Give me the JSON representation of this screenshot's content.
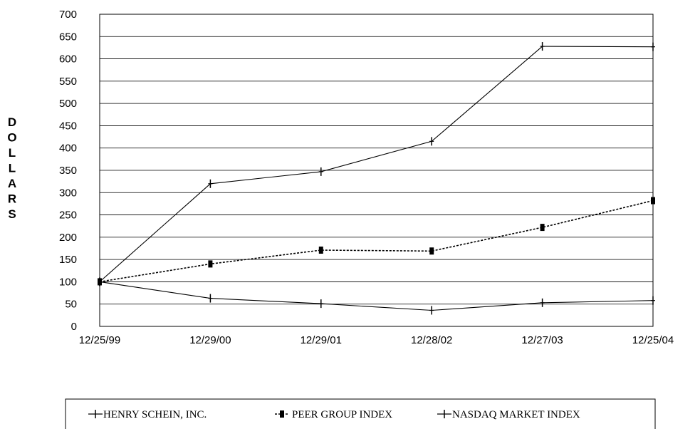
{
  "chart_data": {
    "type": "line",
    "title": "",
    "xlabel": "",
    "ylabel": "DOLLARS",
    "categories": [
      "12/25/99",
      "12/29/00",
      "12/29/01",
      "12/28/02",
      "12/27/03",
      "12/25/04"
    ],
    "ylim": [
      0,
      700
    ],
    "yticks": [
      0,
      50,
      100,
      150,
      200,
      250,
      300,
      350,
      400,
      450,
      500,
      550,
      600,
      650,
      700
    ],
    "grid": true,
    "legend_position": "bottom",
    "series": [
      {
        "name": "HENRY SCHEIN, INC.",
        "values": [
          100,
          320,
          347,
          415,
          628,
          627
        ],
        "style": "solid",
        "marker": "plus"
      },
      {
        "name": "PEER GROUP INDEX",
        "values": [
          100,
          140,
          171,
          169,
          222,
          282
        ],
        "style": "dashed",
        "marker": "square"
      },
      {
        "name": "NASDAQ MARKET INDEX",
        "values": [
          100,
          63,
          51,
          36,
          53,
          58
        ],
        "style": "solid",
        "marker": "plus"
      }
    ]
  }
}
